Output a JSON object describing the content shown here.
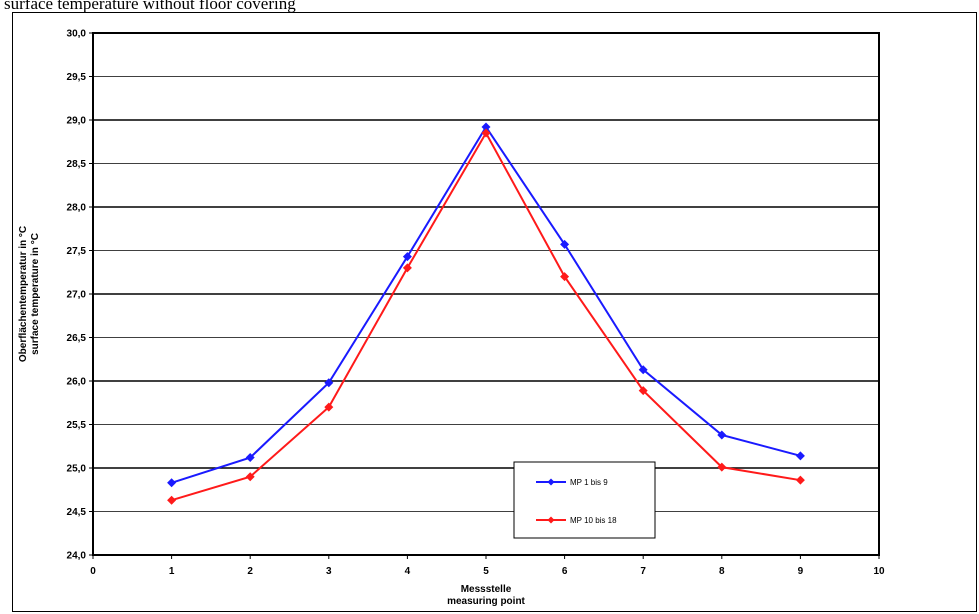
{
  "caption": "surface temperature without floor covering",
  "chart_data": {
    "type": "line",
    "title": "",
    "xlabel": [
      "Messstelle",
      "measuring point"
    ],
    "ylabel": [
      "Oberflächentemperatur in °C",
      "surface temperature in °C"
    ],
    "xlim": [
      0,
      10
    ],
    "ylim": [
      24.0,
      30.0
    ],
    "xticks": [
      "0",
      "1",
      "2",
      "3",
      "4",
      "5",
      "6",
      "7",
      "8",
      "9",
      "10"
    ],
    "yticks": [
      "24,0",
      "24,5",
      "25,0",
      "25,5",
      "26,0",
      "26,5",
      "27,0",
      "27,5",
      "28,0",
      "28,5",
      "29,0",
      "29,5",
      "30,0"
    ],
    "grid": true,
    "legend_position": "lower-right",
    "series": [
      {
        "name": "MP 1 bis 9",
        "color": "#1a1aff",
        "x": [
          1,
          2,
          3,
          4,
          5,
          6,
          7,
          8,
          9
        ],
        "values": [
          24.83,
          25.12,
          25.98,
          27.43,
          28.92,
          27.57,
          26.13,
          25.38,
          25.14
        ]
      },
      {
        "name": "MP 10 bis 18",
        "color": "#ff1a1a",
        "x": [
          1,
          2,
          3,
          4,
          5,
          6,
          7,
          8,
          9
        ],
        "values": [
          24.63,
          24.9,
          25.7,
          27.3,
          28.85,
          27.2,
          25.89,
          25.01,
          24.86
        ]
      }
    ]
  }
}
